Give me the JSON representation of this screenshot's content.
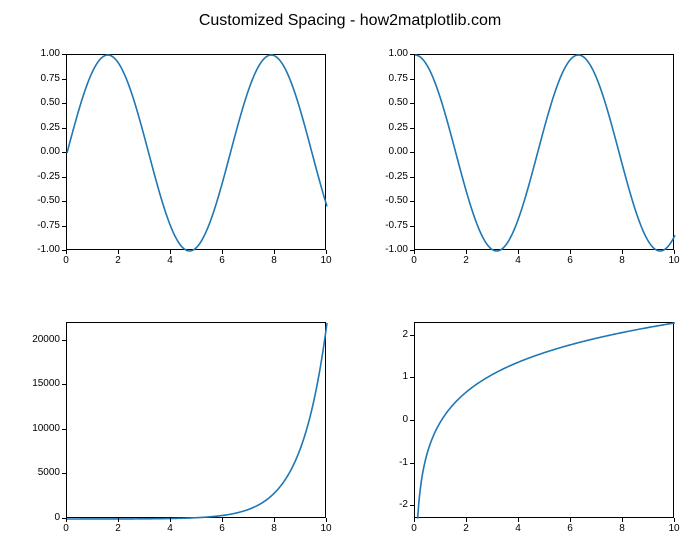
{
  "title": "Customized Spacing - how2matplotlib.com",
  "title_fontsize": 16,
  "background_color": "#ffffff",
  "line_color": "#1f77b4",
  "tick_fontsize": 10,
  "axis_color": "#000000",
  "panels": {
    "sin": {
      "type": "line",
      "function": "sin(x)",
      "xlim": [
        0,
        10
      ],
      "ylim": [
        -1.0,
        1.0
      ],
      "xticks": [
        0,
        2,
        4,
        6,
        8,
        10
      ],
      "yticks": [
        -1.0,
        -0.75,
        -0.5,
        -0.25,
        0.0,
        0.25,
        0.5,
        0.75,
        1.0
      ],
      "ytick_labels": [
        "-1.00",
        "-0.75",
        "-0.50",
        "-0.25",
        "0.00",
        "0.25",
        "0.50",
        "0.75",
        "1.00"
      ]
    },
    "cos": {
      "type": "line",
      "function": "cos(x)",
      "xlim": [
        0,
        10
      ],
      "ylim": [
        -1.0,
        1.0
      ],
      "xticks": [
        0,
        2,
        4,
        6,
        8,
        10
      ],
      "yticks": [
        -1.0,
        -0.75,
        -0.5,
        -0.25,
        0.0,
        0.25,
        0.5,
        0.75,
        1.0
      ],
      "ytick_labels": [
        "-1.00",
        "-0.75",
        "-0.50",
        "-0.25",
        "0.00",
        "0.25",
        "0.50",
        "0.75",
        "1.00"
      ]
    },
    "exp": {
      "type": "line",
      "function": "exp(x)",
      "xlim": [
        0,
        10
      ],
      "ylim": [
        0,
        22000
      ],
      "xticks": [
        0,
        2,
        4,
        6,
        8,
        10
      ],
      "yticks": [
        0,
        5000,
        10000,
        15000,
        20000
      ],
      "ytick_labels": [
        "0",
        "5000",
        "10000",
        "15000",
        "20000"
      ]
    },
    "log": {
      "type": "line",
      "function": "ln(x)",
      "xlim": [
        0,
        10
      ],
      "ylim": [
        -2.3,
        2.3
      ],
      "xticks": [
        0,
        2,
        4,
        6,
        8,
        10
      ],
      "yticks": [
        -2,
        -1,
        0,
        1,
        2
      ],
      "ytick_labels": [
        "-2",
        "-1",
        "0",
        "1",
        "2"
      ]
    }
  }
}
